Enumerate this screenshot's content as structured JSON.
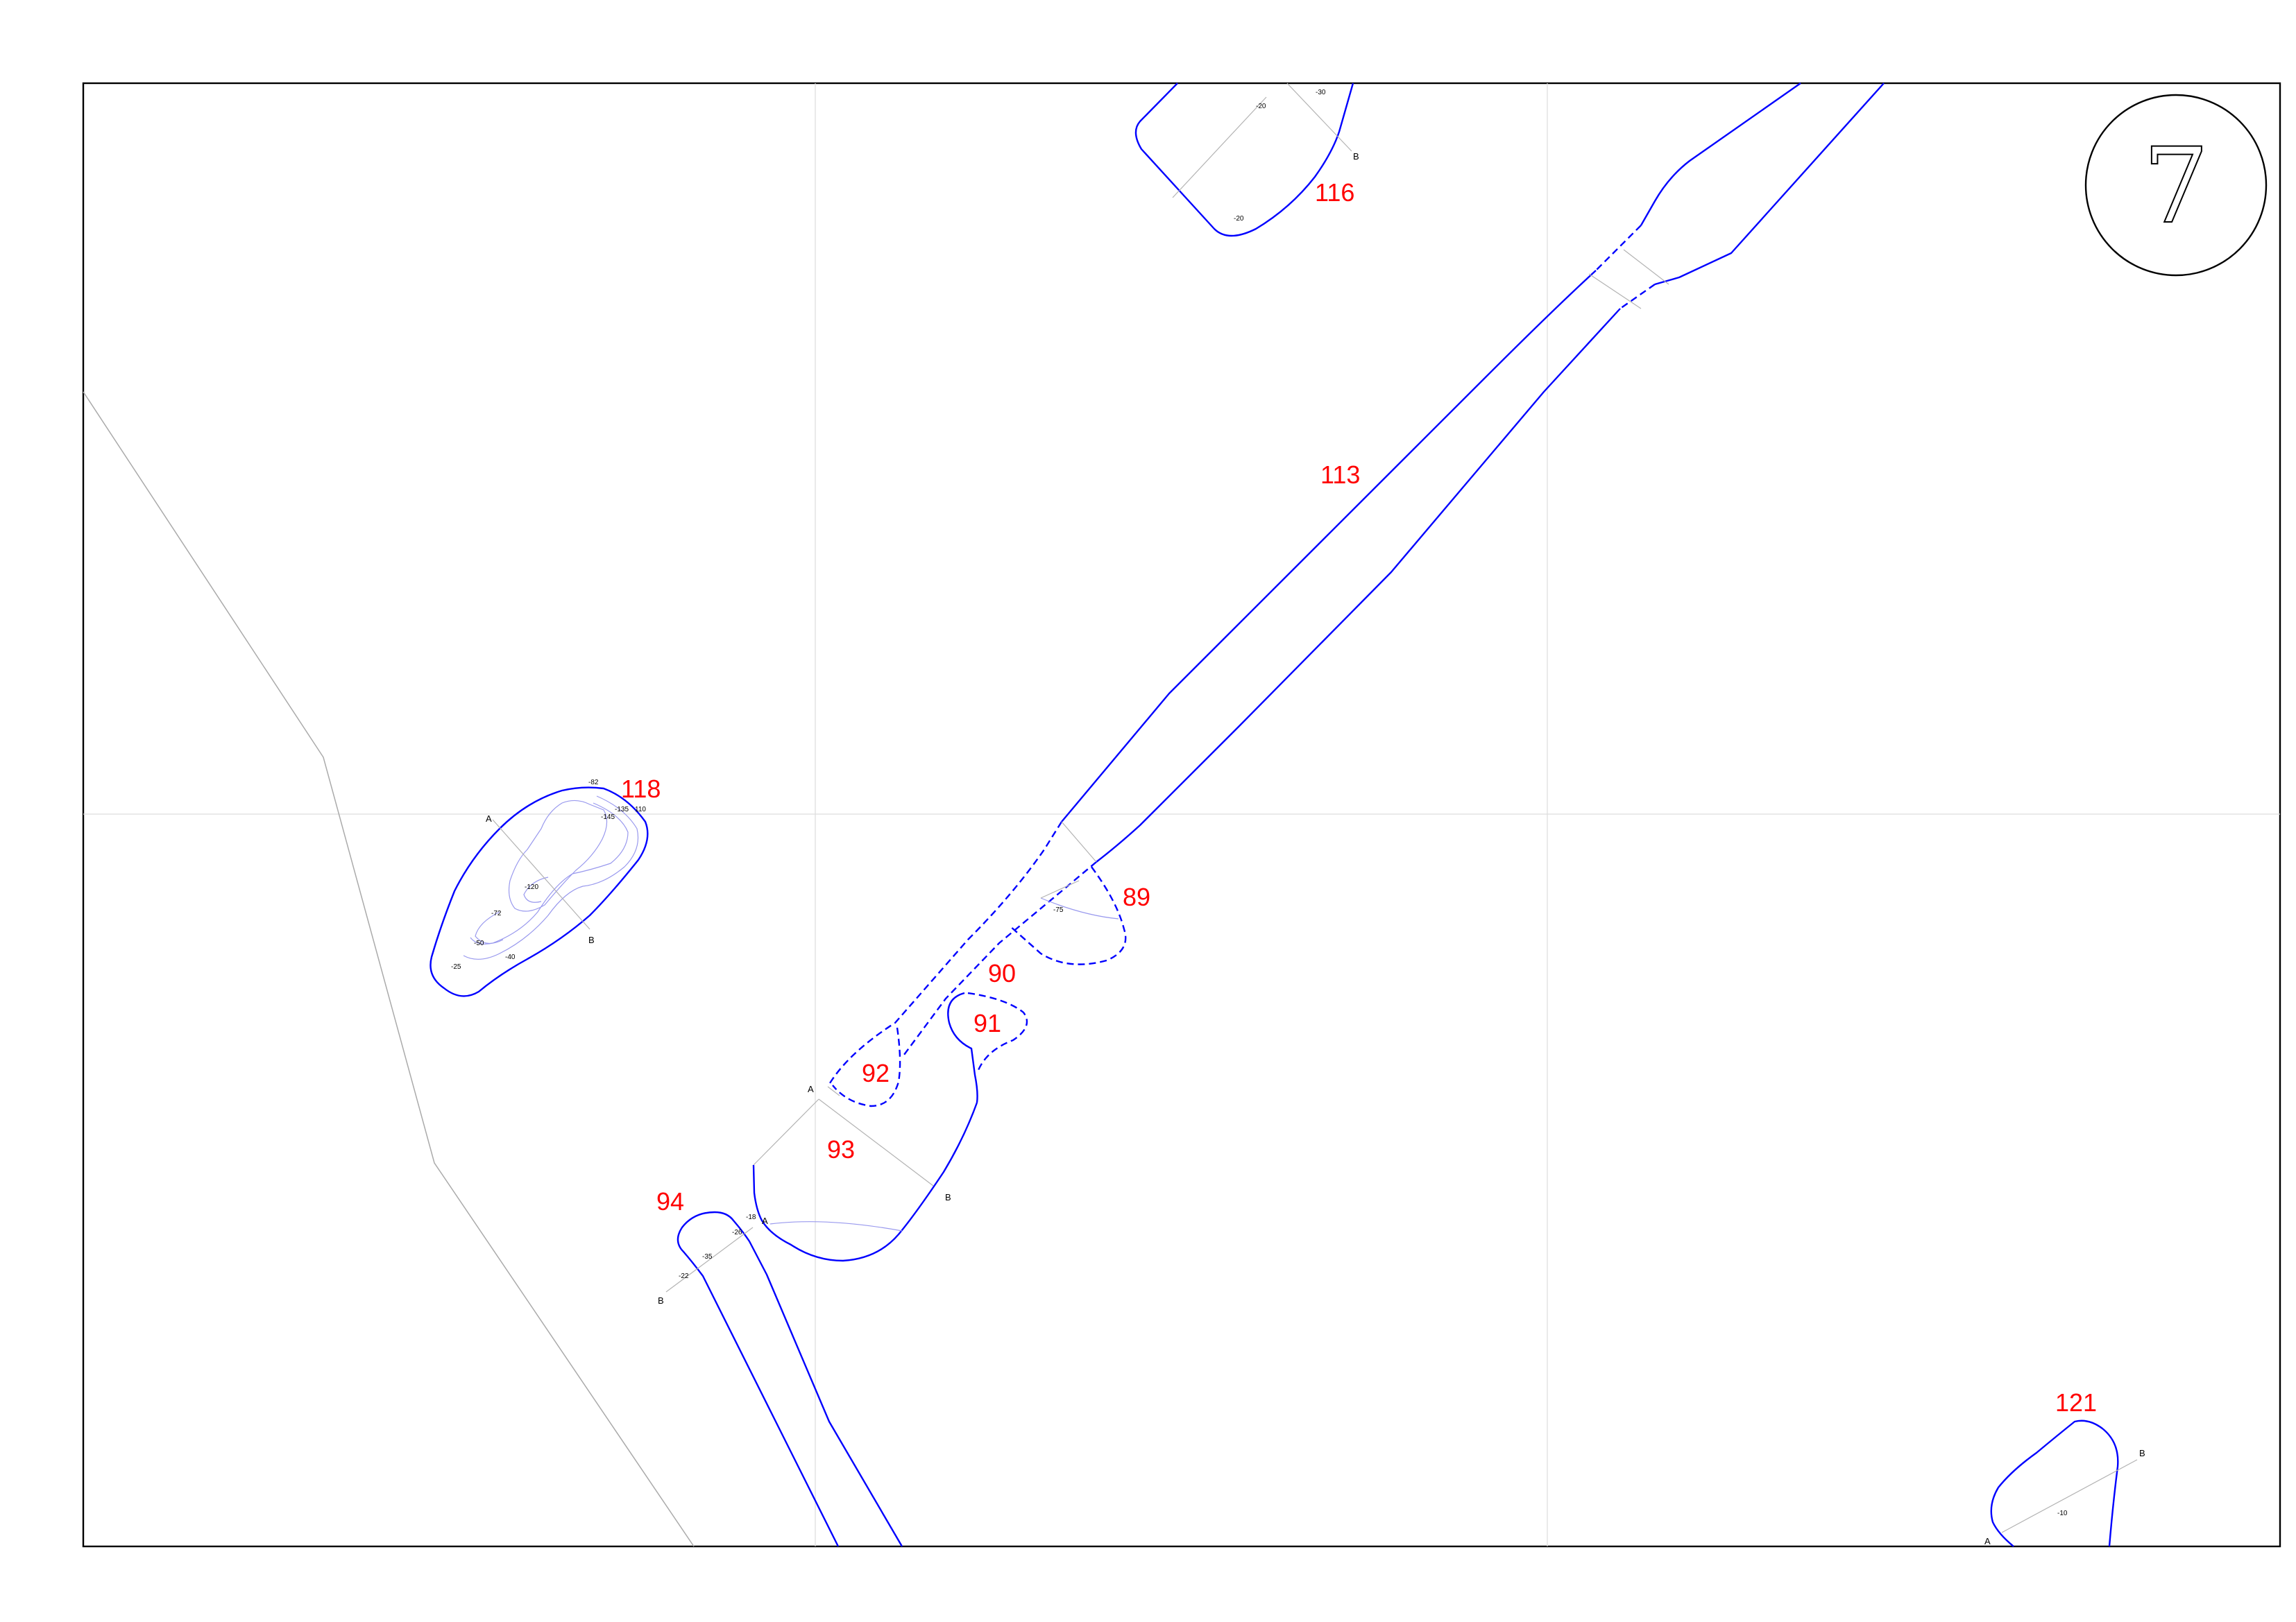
{
  "sheet": {
    "number": "7"
  },
  "features": [
    {
      "id": "f116",
      "label": "116"
    },
    {
      "id": "f113",
      "label": "113"
    },
    {
      "id": "f118",
      "label": "118"
    },
    {
      "id": "f89",
      "label": "89"
    },
    {
      "id": "f90",
      "label": "90"
    },
    {
      "id": "f91",
      "label": "91"
    },
    {
      "id": "f92",
      "label": "92"
    },
    {
      "id": "f93",
      "label": "93"
    },
    {
      "id": "f94",
      "label": "94"
    },
    {
      "id": "f121",
      "label": "121"
    }
  ],
  "depths": {
    "f116": [
      "-30",
      "-20",
      "-20"
    ],
    "f118": [
      "-82",
      "-135",
      "110",
      "-145",
      "-120",
      "-72",
      "-50",
      "-40",
      "-25"
    ],
    "f89": [
      "-75"
    ],
    "f94": [
      "-18",
      "-26",
      "-35",
      "-22"
    ],
    "f121": [
      "-10"
    ]
  },
  "section_points": {
    "a": "A",
    "b": "B"
  }
}
